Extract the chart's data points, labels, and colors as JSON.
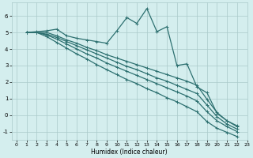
{
  "xlabel": "Humidex (Indice chaleur)",
  "ylabel": "",
  "bg_color": "#d4eeee",
  "grid_color": "#aacaca",
  "line_color": "#2d7070",
  "xlim": [
    -0.5,
    23
  ],
  "ylim": [
    -1.5,
    6.8
  ],
  "yticks": [
    -1,
    0,
    1,
    2,
    3,
    4,
    5,
    6
  ],
  "xticks": [
    0,
    1,
    2,
    3,
    4,
    5,
    6,
    7,
    8,
    9,
    10,
    11,
    12,
    13,
    14,
    15,
    16,
    17,
    18,
    19,
    20,
    21,
    22,
    23
  ],
  "series": [
    [
      5.0,
      5.05,
      5.1,
      5.2,
      4.8,
      4.65,
      4.55,
      4.45,
      4.35,
      5.1,
      5.9,
      5.55,
      6.45,
      5.05,
      5.35,
      3.0,
      3.1,
      1.7,
      1.35,
      0.1,
      -0.35,
      -0.65
    ],
    [
      5.0,
      5.0,
      5.0,
      4.8,
      4.55,
      4.35,
      4.1,
      3.9,
      3.65,
      3.45,
      3.25,
      3.05,
      2.85,
      2.65,
      2.45,
      2.25,
      2.05,
      1.8,
      0.95,
      0.15,
      -0.35,
      -0.7
    ],
    [
      5.0,
      5.0,
      4.9,
      4.7,
      4.45,
      4.2,
      3.95,
      3.7,
      3.45,
      3.2,
      2.95,
      2.75,
      2.5,
      2.25,
      2.05,
      1.8,
      1.55,
      1.3,
      0.6,
      -0.1,
      -0.55,
      -0.85
    ],
    [
      5.0,
      5.0,
      4.85,
      4.6,
      4.3,
      4.0,
      3.7,
      3.45,
      3.15,
      2.9,
      2.65,
      2.4,
      2.15,
      1.9,
      1.65,
      1.4,
      1.15,
      0.85,
      0.2,
      -0.35,
      -0.7,
      -1.0
    ],
    [
      5.0,
      5.0,
      4.75,
      4.4,
      4.05,
      3.7,
      3.4,
      3.05,
      2.75,
      2.45,
      2.15,
      1.9,
      1.6,
      1.35,
      1.05,
      0.8,
      0.5,
      0.2,
      -0.4,
      -0.8,
      -1.05,
      -1.3
    ]
  ],
  "x_start": 1,
  "marker": "+",
  "markersize": 3,
  "linewidth": 0.9
}
